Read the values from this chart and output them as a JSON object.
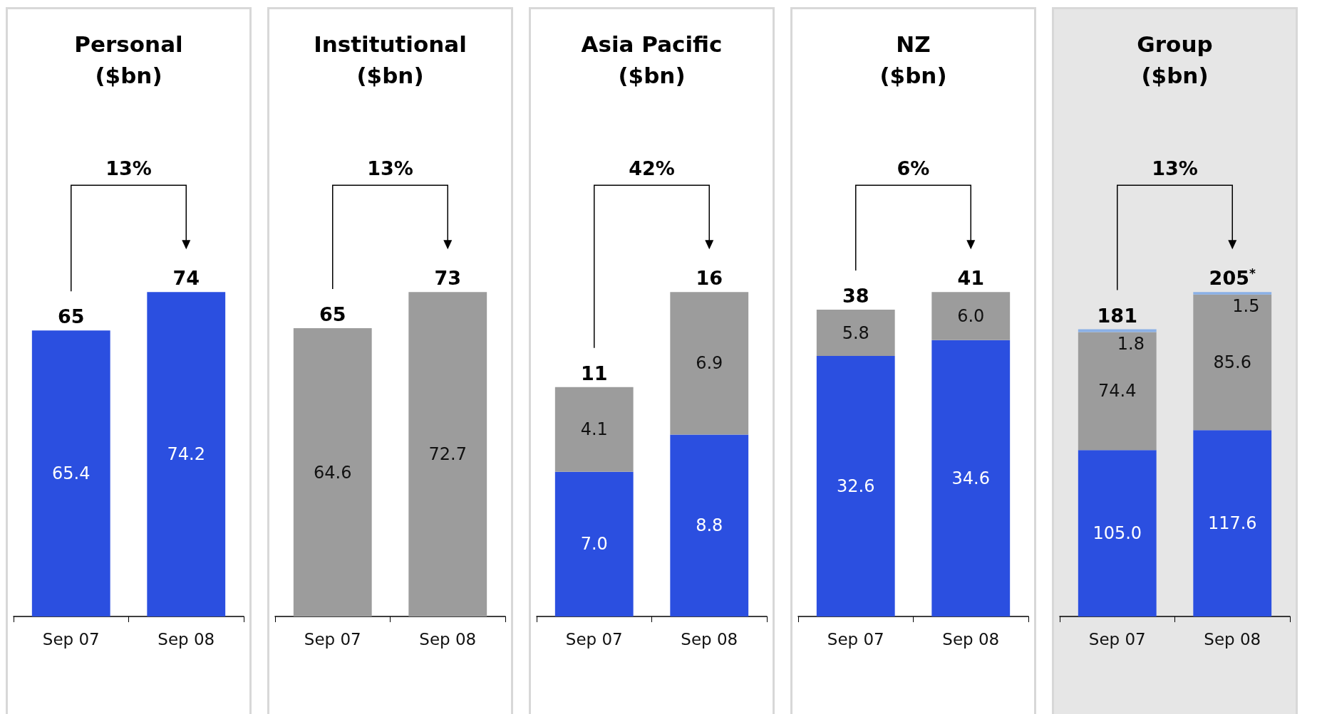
{
  "chart_data": [
    {
      "type": "bar",
      "title": "Personal ($bn)",
      "categories": [
        "Sep 07",
        "Sep 08"
      ],
      "series": [
        {
          "color": "#2b4fe0",
          "values": [
            65.4,
            74.2
          ],
          "value_labels": [
            "65.4",
            "74.2"
          ]
        }
      ],
      "totals": [
        "65",
        "74"
      ],
      "annotations": [
        "13%"
      ]
    },
    {
      "type": "bar",
      "title": "Institutional ($bn)",
      "categories": [
        "Sep 07",
        "Sep 08"
      ],
      "series": [
        {
          "color": "#9c9c9c",
          "values": [
            64.6,
            72.7
          ],
          "value_labels": [
            "64.6",
            "72.7"
          ]
        }
      ],
      "totals": [
        "65",
        "73"
      ],
      "annotations": [
        "13%"
      ]
    },
    {
      "type": "bar",
      "title": "Asia Pacific ($bn)",
      "categories": [
        "Sep 07",
        "Sep 08"
      ],
      "stacked": true,
      "series": [
        {
          "color": "#2b4fe0",
          "values": [
            7.0,
            8.8
          ],
          "value_labels": [
            "7.0",
            "8.8"
          ]
        },
        {
          "color": "#9c9c9c",
          "values": [
            4.1,
            6.9
          ],
          "value_labels": [
            "4.1",
            "6.9"
          ]
        }
      ],
      "totals": [
        "11",
        "16"
      ],
      "annotations": [
        "42%"
      ]
    },
    {
      "type": "bar",
      "title": "NZ ($bn)",
      "categories": [
        "Sep 07",
        "Sep 08"
      ],
      "stacked": true,
      "series": [
        {
          "color": "#2b4fe0",
          "values": [
            32.6,
            34.6
          ],
          "value_labels": [
            "32.6",
            "34.6"
          ]
        },
        {
          "color": "#9c9c9c",
          "values": [
            5.8,
            6.0
          ],
          "value_labels": [
            "5.8",
            "6.0"
          ]
        }
      ],
      "totals": [
        "38",
        "41"
      ],
      "annotations": [
        "6%"
      ]
    },
    {
      "type": "bar",
      "title": "Group ($bn)",
      "categories": [
        "Sep 07",
        "Sep 08"
      ],
      "stacked": true,
      "series": [
        {
          "color": "#2b4fe0",
          "values": [
            105.0,
            117.6
          ],
          "value_labels": [
            "105.0",
            "117.6"
          ]
        },
        {
          "color": "#9c9c9c",
          "values": [
            74.4,
            85.6
          ],
          "value_labels": [
            "74.4",
            "85.6"
          ]
        },
        {
          "color": "#8ab0e6",
          "values": [
            1.8,
            1.5
          ],
          "value_labels": [
            "1.8",
            "1.5"
          ]
        }
      ],
      "totals": [
        "181",
        "205$^{*}$"
      ],
      "annotations": [
        "13%"
      ]
    }
  ]
}
